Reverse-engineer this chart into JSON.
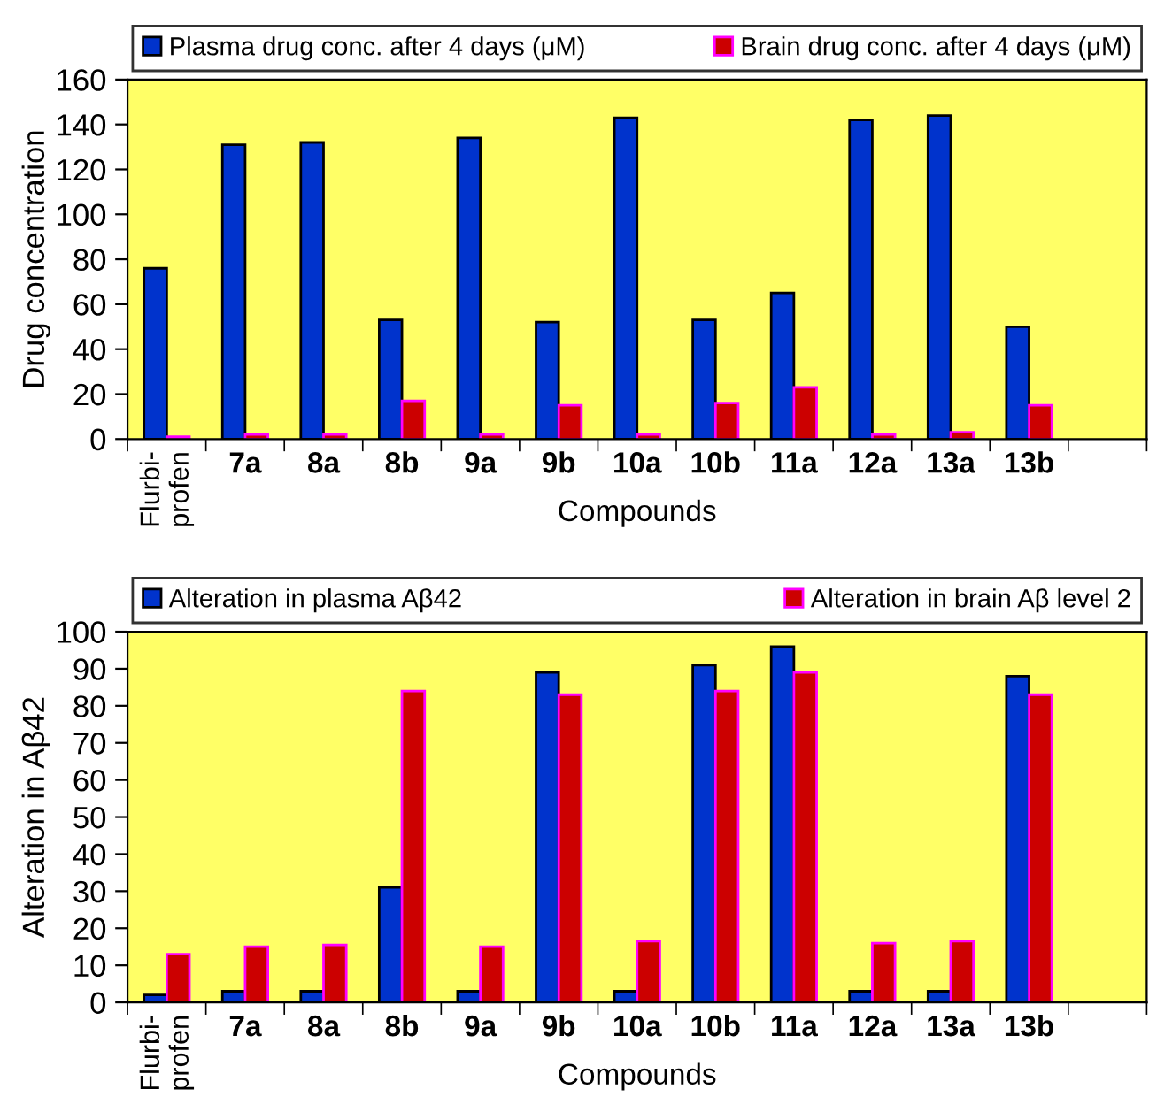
{
  "chart_data": [
    {
      "type": "bar",
      "xlabel": "Compounds",
      "ylabel": "Drug concentration",
      "categories": [
        "Flurbi-\nprofen",
        "7a",
        "8a",
        "8b",
        "9a",
        "9b",
        "10a",
        "10b",
        "11a",
        "12a",
        "13a",
        "13b",
        null
      ],
      "series": [
        {
          "name": "Plasma drug conc. after 4 days (μM)",
          "color": "#0033cc",
          "values": [
            76,
            131,
            132,
            53,
            134,
            52,
            143,
            53,
            65,
            142,
            144,
            50,
            null
          ]
        },
        {
          "name": "Brain drug conc. after 4 days (μM)",
          "color": "#cc0000",
          "values": [
            1,
            2,
            2,
            17,
            2,
            15,
            2,
            16,
            23,
            2,
            3,
            15,
            null
          ]
        }
      ],
      "ylim": [
        0,
        160
      ],
      "yticks": [
        0,
        20,
        40,
        60,
        80,
        100,
        120,
        140,
        160
      ],
      "legend": "top",
      "grid": false
    },
    {
      "type": "bar",
      "xlabel": "Compounds",
      "ylabel": "Alteration in Aβ42",
      "categories": [
        "Flurbi-\nprofen",
        "7a",
        "8a",
        "8b",
        "9a",
        "9b",
        "10a",
        "10b",
        "11a",
        "12a",
        "13a",
        "13b",
        null
      ],
      "series": [
        {
          "name": "Alteration in plasma Aβ42",
          "color": "#0033cc",
          "values": [
            2,
            3,
            3,
            31,
            3,
            89,
            3,
            91,
            96,
            3,
            3,
            88,
            null
          ]
        },
        {
          "name": "Alteration in brain Aβ level 2",
          "color": "#cc0000",
          "values": [
            13,
            15,
            15.5,
            84,
            15,
            83,
            16.5,
            84,
            89,
            16,
            16.5,
            83,
            null
          ]
        }
      ],
      "ylim": [
        0,
        100
      ],
      "yticks": [
        0,
        10,
        20,
        30,
        40,
        50,
        60,
        70,
        80,
        90,
        100
      ],
      "legend": "top",
      "grid": false
    }
  ]
}
